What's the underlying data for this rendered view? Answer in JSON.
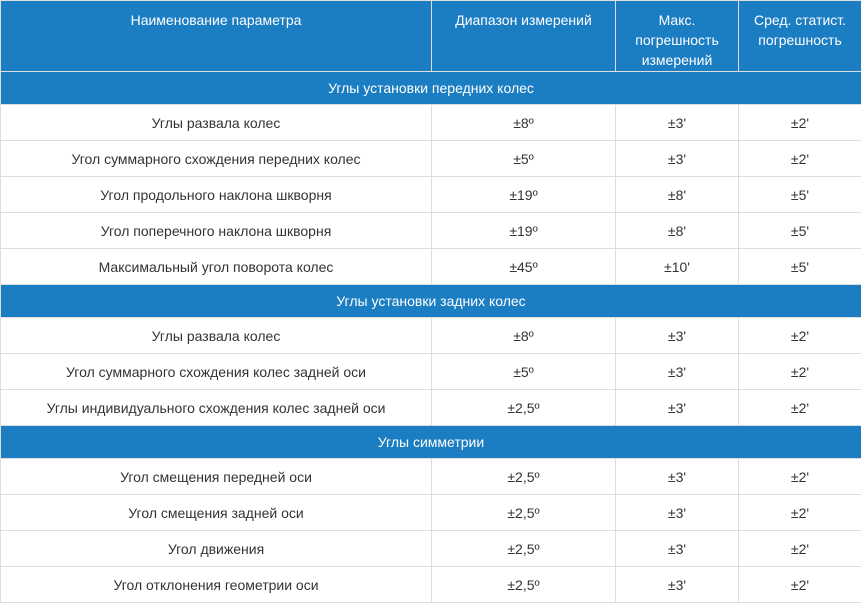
{
  "table": {
    "colors": {
      "header_bg": "#1b7dc2",
      "border": "#dddddd",
      "text": "#333333",
      "header_text": "#ffffff"
    },
    "columns": [
      {
        "label": "Наименование параметра"
      },
      {
        "label": "Диапазон измерений"
      },
      {
        "label": "Макс. погрешность измерений"
      },
      {
        "label": "Сред. статист. погрешность"
      }
    ],
    "sections": [
      {
        "title": "Углы установки передних колес",
        "rows": [
          {
            "name": "Углы развала колес",
            "range": "±8º",
            "max_error": "±3'",
            "stat_error": "±2'"
          },
          {
            "name": "Угол суммарного схождения передних колес",
            "range": "±5º",
            "max_error": "±3'",
            "stat_error": "±2'"
          },
          {
            "name": "Угол продольного наклона шкворня",
            "range": "±19º",
            "max_error": "±8'",
            "stat_error": "±5'"
          },
          {
            "name": "Угол поперечного наклона шкворня",
            "range": "±19º",
            "max_error": "±8'",
            "stat_error": "±5'"
          },
          {
            "name": "Максимальный угол поворота колес",
            "range": "±45º",
            "max_error": "±10'",
            "stat_error": "±5'"
          }
        ]
      },
      {
        "title": "Углы установки задних колес",
        "rows": [
          {
            "name": "Углы развала колес",
            "range": "±8º",
            "max_error": "±3'",
            "stat_error": "±2'"
          },
          {
            "name": "Угол суммарного схождения колес задней оси",
            "range": "±5º",
            "max_error": "±3'",
            "stat_error": "±2'"
          },
          {
            "name": "Углы индивидуального схождения колес задней оси",
            "range": "±2,5º",
            "max_error": "±3'",
            "stat_error": "±2'"
          }
        ]
      },
      {
        "title": "Углы симметрии",
        "rows": [
          {
            "name": "Угол смещения передней оси",
            "range": "±2,5º",
            "max_error": "±3'",
            "stat_error": "±2'"
          },
          {
            "name": "Угол смещения задней оси",
            "range": "±2,5º",
            "max_error": "±3'",
            "stat_error": "±2'"
          },
          {
            "name": "Угол движения",
            "range": "±2,5º",
            "max_error": "±3'",
            "stat_error": "±2'"
          },
          {
            "name": "Угол отклонения геометрии оси",
            "range": "±2,5º",
            "max_error": "±3'",
            "stat_error": "±2'"
          }
        ]
      }
    ]
  }
}
